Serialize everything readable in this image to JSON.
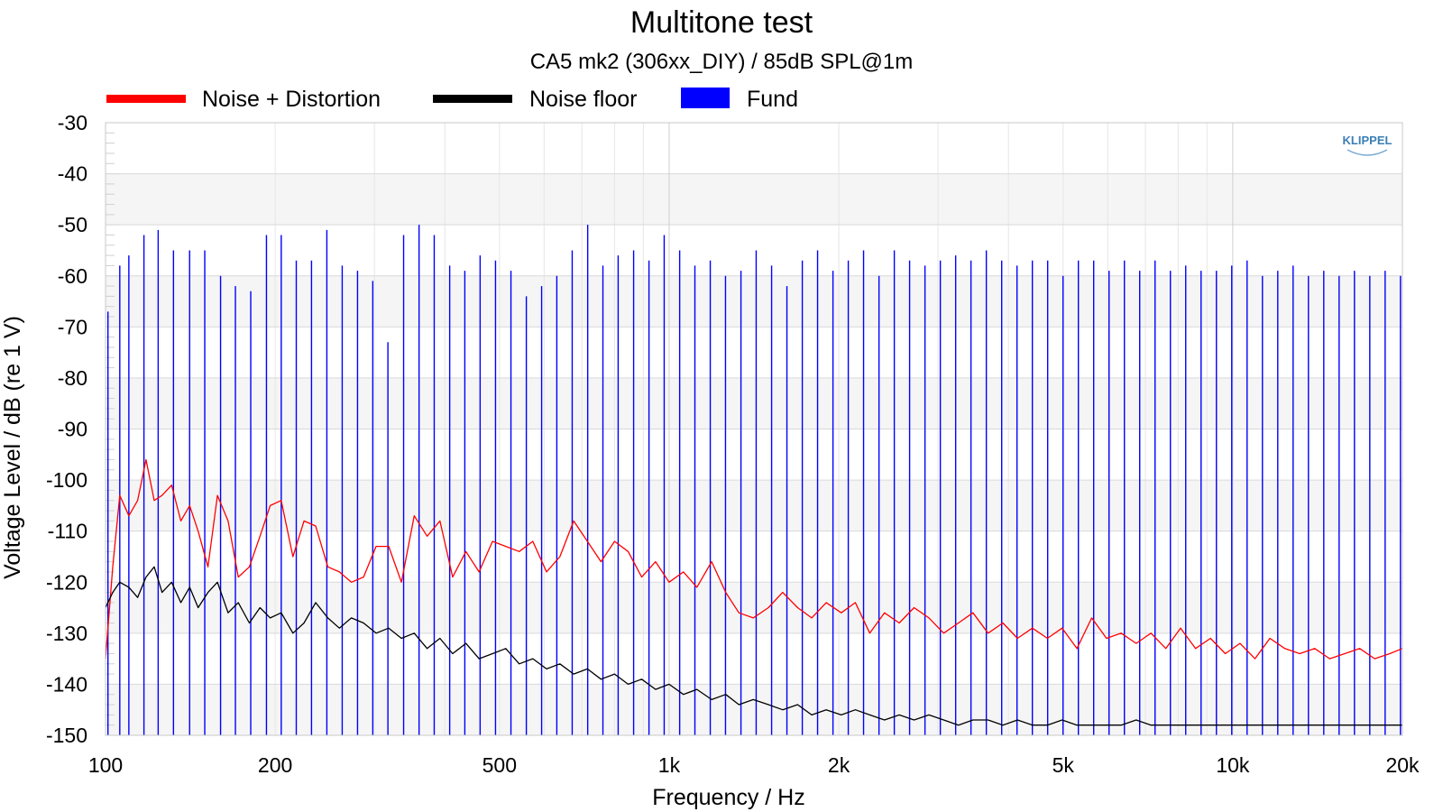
{
  "chart_data": {
    "type": "line",
    "title": "Multitone test",
    "subtitle": "CA5 mk2 (306xx_DIY) / 85dB SPL@1m",
    "xlabel": "Frequency / Hz",
    "ylabel": "Voltage Level / dB (re 1 V)",
    "xscale": "log",
    "xlim": [
      100,
      20000
    ],
    "ylim": [
      -150,
      -30
    ],
    "grid": true,
    "legend_position": "top",
    "logo": "KLIPPEL",
    "x_ticks": [
      {
        "value": 100,
        "label": "100"
      },
      {
        "value": 200,
        "label": "200"
      },
      {
        "value": 500,
        "label": "500"
      },
      {
        "value": 1000,
        "label": "1k"
      },
      {
        "value": 2000,
        "label": "2k"
      },
      {
        "value": 5000,
        "label": "5k"
      },
      {
        "value": 10000,
        "label": "10k"
      },
      {
        "value": 20000,
        "label": "20k"
      }
    ],
    "y_ticks": [
      {
        "value": -30,
        "label": "-30"
      },
      {
        "value": -40,
        "label": "-40"
      },
      {
        "value": -50,
        "label": "-50"
      },
      {
        "value": -60,
        "label": "-60"
      },
      {
        "value": -70,
        "label": "-70"
      },
      {
        "value": -80,
        "label": "-80"
      },
      {
        "value": -90,
        "label": "-90"
      },
      {
        "value": -100,
        "label": "-100"
      },
      {
        "value": -110,
        "label": "-110"
      },
      {
        "value": -120,
        "label": "-120"
      },
      {
        "value": -130,
        "label": "-130"
      },
      {
        "value": -140,
        "label": "-140"
      },
      {
        "value": -150,
        "label": "-150"
      }
    ],
    "series": [
      {
        "name": "Noise + Distortion",
        "color": "#ff0000",
        "style": "line",
        "x": [
          100,
          103,
          106,
          110,
          114,
          118,
          122,
          126,
          131,
          136,
          141,
          146,
          152,
          158,
          165,
          172,
          180,
          188,
          196,
          205,
          215,
          225,
          236,
          248,
          260,
          273,
          287,
          302,
          318,
          335,
          353,
          372,
          392,
          413,
          436,
          460,
          486,
          513,
          542,
          573,
          606,
          640,
          677,
          716,
          757,
          800,
          846,
          894,
          946,
          1000,
          1060,
          1120,
          1190,
          1260,
          1330,
          1410,
          1500,
          1590,
          1690,
          1790,
          1900,
          2020,
          2140,
          2270,
          2410,
          2560,
          2720,
          2890,
          3070,
          3260,
          3460,
          3680,
          3910,
          4150,
          4410,
          4690,
          4980,
          5290,
          5620,
          5970,
          6340,
          6740,
          7160,
          7610,
          8080,
          8590,
          9130,
          9700,
          10300,
          10950,
          11640,
          12370,
          13150,
          13980,
          14860,
          15800,
          16800,
          17860,
          18990,
          20000
        ],
        "y": [
          -135,
          -117,
          -103,
          -107,
          -104,
          -96,
          -104,
          -103,
          -101,
          -108,
          -105,
          -110,
          -117,
          -103,
          -108,
          -119,
          -117,
          -111,
          -105,
          -104,
          -115,
          -108,
          -109,
          -117,
          -118,
          -120,
          -119,
          -113,
          -113,
          -120,
          -107,
          -111,
          -108,
          -119,
          -114,
          -118,
          -112,
          -113,
          -114,
          -112,
          -118,
          -115,
          -108,
          -112,
          -116,
          -112,
          -114,
          -119,
          -116,
          -120,
          -118,
          -121,
          -116,
          -122,
          -126,
          -127,
          -125,
          -122,
          -125,
          -127,
          -124,
          -126,
          -124,
          -130,
          -126,
          -128,
          -125,
          -127,
          -130,
          -128,
          -126,
          -130,
          -128,
          -131,
          -129,
          -131,
          -129,
          -133,
          -127,
          -131,
          -130,
          -132,
          -130,
          -133,
          -129,
          -133,
          -131,
          -134,
          -132,
          -135,
          -131,
          -133,
          -134,
          -133,
          -135,
          -134,
          -133,
          -135,
          -134,
          -133
        ]
      },
      {
        "name": "Noise floor",
        "color": "#000000",
        "style": "line",
        "x": [
          100,
          103,
          106,
          110,
          114,
          118,
          122,
          126,
          131,
          136,
          141,
          146,
          152,
          158,
          165,
          172,
          180,
          188,
          196,
          205,
          215,
          225,
          236,
          248,
          260,
          273,
          287,
          302,
          318,
          335,
          353,
          372,
          392,
          413,
          436,
          460,
          486,
          513,
          542,
          573,
          606,
          640,
          677,
          716,
          757,
          800,
          846,
          894,
          946,
          1000,
          1060,
          1120,
          1190,
          1260,
          1330,
          1410,
          1500,
          1590,
          1690,
          1790,
          1900,
          2020,
          2140,
          2270,
          2410,
          2560,
          2720,
          2890,
          3070,
          3260,
          3460,
          3680,
          3910,
          4150,
          4410,
          4690,
          4980,
          5290,
          5620,
          5970,
          6340,
          6740,
          7160,
          7610,
          8080,
          8590,
          9130,
          9700,
          10300,
          10950,
          11640,
          12370,
          13150,
          13980,
          14860,
          15800,
          16800,
          17860,
          18990,
          20000
        ],
        "y": [
          -125,
          -122,
          -120,
          -121,
          -123,
          -119,
          -117,
          -122,
          -120,
          -124,
          -121,
          -125,
          -122,
          -120,
          -126,
          -124,
          -128,
          -125,
          -127,
          -126,
          -130,
          -128,
          -124,
          -127,
          -129,
          -127,
          -128,
          -130,
          -129,
          -131,
          -130,
          -133,
          -131,
          -134,
          -132,
          -135,
          -134,
          -133,
          -136,
          -135,
          -137,
          -136,
          -138,
          -137,
          -139,
          -138,
          -140,
          -139,
          -141,
          -140,
          -142,
          -141,
          -143,
          -142,
          -144,
          -143,
          -144,
          -145,
          -144,
          -146,
          -145,
          -146,
          -145,
          -146,
          -147,
          -146,
          -147,
          -146,
          -147,
          -148,
          -147,
          -147,
          -148,
          -147,
          -148,
          -148,
          -147,
          -148,
          -148,
          -148,
          -148,
          -147,
          -148,
          -148,
          -148,
          -148,
          -148,
          -148,
          -148,
          -148,
          -148,
          -148,
          -148,
          -148,
          -148,
          -148,
          -148,
          -148,
          -148,
          -148
        ]
      },
      {
        "name": "Fund",
        "color": "#0000ff",
        "style": "stems",
        "x": [
          101,
          106,
          110,
          117,
          124,
          132,
          141,
          150,
          160,
          170,
          181,
          193,
          205,
          218,
          232,
          247,
          263,
          280,
          298,
          317,
          338,
          360,
          383,
          408,
          434,
          462,
          492,
          524,
          558,
          594,
          632,
          673,
          717,
          763,
          812,
          865,
          921,
          980,
          1044,
          1111,
          1183,
          1259,
          1341,
          1427,
          1520,
          1618,
          1723,
          1834,
          1953,
          2079,
          2213,
          2357,
          2509,
          2671,
          2844,
          3028,
          3224,
          3432,
          3654,
          3891,
          4142,
          4410,
          4695,
          4999,
          5322,
          5666,
          6033,
          6423,
          6838,
          7280,
          7751,
          8252,
          8786,
          9354,
          9959,
          10603,
          11289,
          12019,
          12796,
          13623,
          14504,
          15442,
          16441,
          17504,
          18636,
          19841
        ],
        "y": [
          -67,
          -58,
          -56,
          -52,
          -51,
          -55,
          -55,
          -55,
          -60,
          -62,
          -63,
          -52,
          -52,
          -57,
          -57,
          -51,
          -58,
          -59,
          -61,
          -73,
          -52,
          -50,
          -52,
          -58,
          -59,
          -56,
          -57,
          -59,
          -64,
          -62,
          -60,
          -55,
          -50,
          -58,
          -56,
          -55,
          -57,
          -52,
          -55,
          -58,
          -57,
          -60,
          -59,
          -55,
          -58,
          -62,
          -57,
          -55,
          -59,
          -57,
          -55,
          -60,
          -55,
          -57,
          -58,
          -57,
          -56,
          -57,
          -55,
          -57,
          -58,
          -57,
          -57,
          -60,
          -57,
          -57,
          -59,
          -57,
          -59,
          -57,
          -59,
          -58,
          -59,
          -59,
          -58,
          -57,
          -60,
          -59,
          -58,
          -60,
          -59,
          -60,
          -59,
          -60,
          -59,
          -60
        ]
      }
    ]
  }
}
